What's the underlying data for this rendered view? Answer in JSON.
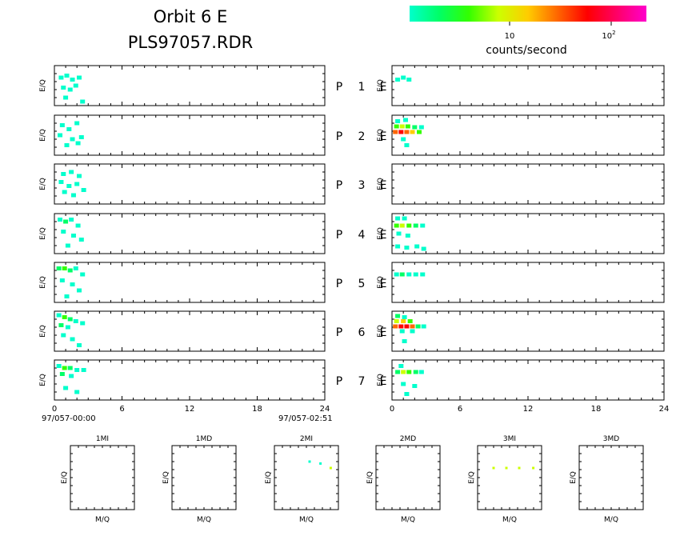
{
  "header": {
    "title_line1": "Orbit 6 E",
    "title_line2": "PLS97057.RDR"
  },
  "colorbar": {
    "colors": [
      "#00ffcc",
      "#00ff66",
      "#33ff00",
      "#ccff00",
      "#ffcc00",
      "#ff6600",
      "#ff0000",
      "#ff0066",
      "#ff00cc"
    ],
    "tick_10": "10",
    "tick_100_base": "10",
    "tick_100_exp": "2",
    "label": "counts/second"
  },
  "strip_axis": {
    "ylabel": "E/Q",
    "xticks": [
      "0",
      "6",
      "12",
      "18",
      "24"
    ],
    "xrange": [
      0,
      24
    ],
    "start_label": "97/057-00:00",
    "end_label": "97/057-02:51"
  },
  "rows": [
    {
      "p": "P",
      "n": "1",
      "e": "E"
    },
    {
      "p": "P",
      "n": "2",
      "e": "E"
    },
    {
      "p": "P",
      "n": "3",
      "e": "E"
    },
    {
      "p": "P",
      "n": "4",
      "e": "E"
    },
    {
      "p": "P",
      "n": "5",
      "e": "E"
    },
    {
      "p": "P",
      "n": "6",
      "e": "E"
    },
    {
      "p": "P",
      "n": "7",
      "e": "E"
    }
  ],
  "mini_plots": [
    {
      "title": "1MI",
      "xlabel": "M/Q",
      "ylabel": "E/Q"
    },
    {
      "title": "1MD",
      "xlabel": "M/Q",
      "ylabel": "E/Q"
    },
    {
      "title": "2MI",
      "xlabel": "M/Q",
      "ylabel": "E/Q"
    },
    {
      "title": "2MD",
      "xlabel": "M/Q",
      "ylabel": "E/Q"
    },
    {
      "title": "3MI",
      "xlabel": "M/Q",
      "ylabel": "E/Q"
    },
    {
      "title": "3MD",
      "xlabel": "M/Q",
      "ylabel": "E/Q"
    }
  ],
  "chart_data": {
    "type": "heatmap",
    "x_range": [
      0,
      24
    ],
    "color_scale": "log counts/second",
    "panels": [
      {
        "side": "left",
        "row": 1,
        "cells": [
          [
            0.6,
            0.3,
            "#00ffcc"
          ],
          [
            1.1,
            0.25,
            "#00ffcc"
          ],
          [
            1.6,
            0.35,
            "#00ffcc"
          ],
          [
            2.2,
            0.3,
            "#00ffcc"
          ],
          [
            0.8,
            0.55,
            "#00ffcc"
          ],
          [
            1.4,
            0.6,
            "#00ffcc"
          ],
          [
            1.9,
            0.5,
            "#00ffcc"
          ],
          [
            1.0,
            0.8,
            "#00ffcc"
          ],
          [
            2.5,
            0.9,
            "#00ffcc"
          ]
        ]
      },
      {
        "side": "left",
        "row": 2,
        "cells": [
          [
            0.7,
            0.25,
            "#00ffcc"
          ],
          [
            1.3,
            0.35,
            "#00ffcc"
          ],
          [
            2.0,
            0.2,
            "#00ffcc"
          ],
          [
            0.5,
            0.5,
            "#00ffcc"
          ],
          [
            1.6,
            0.6,
            "#00ffcc"
          ],
          [
            2.4,
            0.55,
            "#00ffcc"
          ],
          [
            1.1,
            0.75,
            "#00ffcc"
          ],
          [
            2.1,
            0.7,
            "#00ffcc"
          ]
        ]
      },
      {
        "side": "left",
        "row": 3,
        "cells": [
          [
            0.8,
            0.25,
            "#00ffcc"
          ],
          [
            1.5,
            0.2,
            "#00ffcc"
          ],
          [
            2.2,
            0.3,
            "#00ffcc"
          ],
          [
            0.6,
            0.45,
            "#00ffcc"
          ],
          [
            1.3,
            0.55,
            "#00ffcc"
          ],
          [
            2.0,
            0.5,
            "#00ffcc"
          ],
          [
            0.9,
            0.7,
            "#00ffcc"
          ],
          [
            1.7,
            0.78,
            "#00ffcc"
          ],
          [
            2.6,
            0.65,
            "#00ffcc"
          ]
        ]
      },
      {
        "side": "left",
        "row": 4,
        "cells": [
          [
            0.5,
            0.15,
            "#00ffcc"
          ],
          [
            1.0,
            0.2,
            "#00ff66"
          ],
          [
            1.5,
            0.15,
            "#00ffcc"
          ],
          [
            2.1,
            0.3,
            "#00ffcc"
          ],
          [
            0.8,
            0.45,
            "#00ffcc"
          ],
          [
            1.7,
            0.55,
            "#00ffcc"
          ],
          [
            2.4,
            0.65,
            "#00ffcc"
          ],
          [
            1.2,
            0.8,
            "#00ffcc"
          ]
        ]
      },
      {
        "side": "left",
        "row": 5,
        "cells": [
          [
            0.4,
            0.15,
            "#00ff66"
          ],
          [
            0.9,
            0.15,
            "#33ff00"
          ],
          [
            1.4,
            0.2,
            "#00ff66"
          ],
          [
            1.9,
            0.15,
            "#00ffcc"
          ],
          [
            2.5,
            0.3,
            "#00ffcc"
          ],
          [
            0.7,
            0.45,
            "#00ffcc"
          ],
          [
            1.6,
            0.55,
            "#00ffcc"
          ],
          [
            2.2,
            0.7,
            "#00ffcc"
          ],
          [
            1.1,
            0.85,
            "#00ffcc"
          ]
        ]
      },
      {
        "side": "left",
        "row": 6,
        "cells": [
          [
            0.4,
            0.1,
            "#00ffcc"
          ],
          [
            0.9,
            0.15,
            "#33ff00"
          ],
          [
            1.4,
            0.2,
            "#00ff66"
          ],
          [
            1.9,
            0.25,
            "#00ffcc"
          ],
          [
            2.5,
            0.3,
            "#00ffcc"
          ],
          [
            0.6,
            0.35,
            "#00ff66"
          ],
          [
            1.2,
            0.4,
            "#00ffcc"
          ],
          [
            0.8,
            0.6,
            "#00ffcc"
          ],
          [
            1.6,
            0.7,
            "#00ffcc"
          ],
          [
            2.2,
            0.85,
            "#00ffcc"
          ]
        ]
      },
      {
        "side": "left",
        "row": 7,
        "cells": [
          [
            0.4,
            0.15,
            "#00ffcc"
          ],
          [
            0.9,
            0.2,
            "#33ff00"
          ],
          [
            1.4,
            0.2,
            "#00ff66"
          ],
          [
            2.0,
            0.25,
            "#00ffcc"
          ],
          [
            2.6,
            0.25,
            "#00ffcc"
          ],
          [
            0.7,
            0.35,
            "#00ff66"
          ],
          [
            1.5,
            0.4,
            "#00ffcc"
          ],
          [
            1.0,
            0.7,
            "#00ffcc"
          ],
          [
            2.0,
            0.8,
            "#00ffcc"
          ]
        ]
      },
      {
        "side": "right",
        "row": 1,
        "cells": [
          [
            0.5,
            0.35,
            "#00ffcc"
          ],
          [
            1.0,
            0.3,
            "#00ffcc"
          ],
          [
            1.5,
            0.35,
            "#00ffcc"
          ]
        ]
      },
      {
        "side": "right",
        "row": 2,
        "cells": [
          [
            0.5,
            0.15,
            "#00ffcc"
          ],
          [
            1.2,
            0.12,
            "#00ffcc"
          ],
          [
            0.4,
            0.28,
            "#33ff00"
          ],
          [
            0.9,
            0.28,
            "#ccff00"
          ],
          [
            1.4,
            0.28,
            "#33ff00"
          ],
          [
            2.0,
            0.3,
            "#00ff66"
          ],
          [
            2.6,
            0.3,
            "#00ffcc"
          ],
          [
            0.3,
            0.42,
            "#ff6600"
          ],
          [
            0.8,
            0.42,
            "#ff0000"
          ],
          [
            1.3,
            0.42,
            "#ff6600"
          ],
          [
            1.8,
            0.42,
            "#ffcc00"
          ],
          [
            2.4,
            0.42,
            "#33ff00"
          ],
          [
            1.0,
            0.6,
            "#00ffcc"
          ],
          [
            1.3,
            0.75,
            "#00ffcc"
          ]
        ]
      },
      {
        "side": "right",
        "row": 4,
        "cells": [
          [
            0.5,
            0.12,
            "#00ffcc"
          ],
          [
            1.1,
            0.12,
            "#00ffcc"
          ],
          [
            0.4,
            0.3,
            "#33ff00"
          ],
          [
            0.9,
            0.3,
            "#ccff00"
          ],
          [
            1.5,
            0.3,
            "#33ff00"
          ],
          [
            2.1,
            0.3,
            "#00ff66"
          ],
          [
            2.7,
            0.3,
            "#00ffcc"
          ],
          [
            0.6,
            0.5,
            "#00ffcc"
          ],
          [
            1.4,
            0.55,
            "#00ffcc"
          ],
          [
            0.5,
            0.82,
            "#00ffcc"
          ],
          [
            1.3,
            0.85,
            "#00ffcc"
          ],
          [
            2.2,
            0.82,
            "#00ffcc"
          ],
          [
            2.8,
            0.88,
            "#00ffcc"
          ]
        ]
      },
      {
        "side": "right",
        "row": 5,
        "cells": [
          [
            0.4,
            0.3,
            "#00ffcc"
          ],
          [
            0.9,
            0.3,
            "#00ff66"
          ],
          [
            1.5,
            0.3,
            "#00ffcc"
          ],
          [
            2.1,
            0.3,
            "#00ffcc"
          ],
          [
            2.7,
            0.3,
            "#00ffcc"
          ]
        ]
      },
      {
        "side": "right",
        "row": 6,
        "cells": [
          [
            0.5,
            0.12,
            "#00ff66"
          ],
          [
            1.1,
            0.15,
            "#00ffcc"
          ],
          [
            0.4,
            0.25,
            "#ccff00"
          ],
          [
            1.0,
            0.25,
            "#ffcc00"
          ],
          [
            1.6,
            0.25,
            "#33ff00"
          ],
          [
            0.3,
            0.38,
            "#ff6600"
          ],
          [
            0.8,
            0.38,
            "#ff0000"
          ],
          [
            1.3,
            0.38,
            "#ff0000"
          ],
          [
            1.8,
            0.38,
            "#ff6600"
          ],
          [
            2.3,
            0.38,
            "#00ff66"
          ],
          [
            2.8,
            0.38,
            "#00ffcc"
          ],
          [
            0.9,
            0.5,
            "#00ffcc"
          ],
          [
            1.8,
            0.5,
            "#00ffcc"
          ],
          [
            1.1,
            0.75,
            "#00ffcc"
          ]
        ]
      },
      {
        "side": "right",
        "row": 7,
        "cells": [
          [
            0.8,
            0.15,
            "#00ffcc"
          ],
          [
            0.5,
            0.3,
            "#00ff66"
          ],
          [
            1.0,
            0.3,
            "#ccff00"
          ],
          [
            1.5,
            0.3,
            "#33ff00"
          ],
          [
            2.1,
            0.3,
            "#00ff66"
          ],
          [
            2.6,
            0.3,
            "#00ffcc"
          ],
          [
            1.0,
            0.6,
            "#00ffcc"
          ],
          [
            2.0,
            0.65,
            "#00ffcc"
          ],
          [
            1.3,
            0.85,
            "#00ffcc"
          ]
        ]
      }
    ],
    "mini_points": [
      {
        "plot": "2MI",
        "points": [
          [
            0.55,
            0.25,
            "#00ffcc"
          ],
          [
            0.72,
            0.28,
            "#00ffcc"
          ],
          [
            0.88,
            0.35,
            "#ccff00"
          ]
        ]
      },
      {
        "plot": "3MI",
        "points": [
          [
            0.25,
            0.35,
            "#ccff00"
          ],
          [
            0.45,
            0.35,
            "#ccff00"
          ],
          [
            0.65,
            0.35,
            "#ccff00"
          ],
          [
            0.87,
            0.35,
            "#ccff00"
          ]
        ]
      }
    ]
  }
}
